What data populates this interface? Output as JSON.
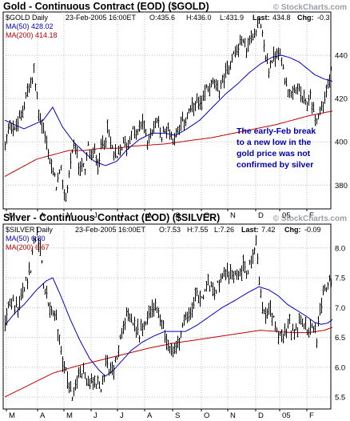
{
  "chart_data": [
    {
      "type": "ohlc",
      "title": "Gold - Continuous Contract (EOD) ($GOLD)",
      "watermark": "© StockCharts.com",
      "info_line": {
        "symbol_label": "$GOLD Daily",
        "date": "23-Feb-2005 16:00ET",
        "open": "O:435.6",
        "high": "H:436.0",
        "low": "L:431.9",
        "last_label": "Last:",
        "last": "434.8",
        "chg_label": "Chg:",
        "chg": "-0.3"
      },
      "legend": {
        "ma50": "MA(50) 428.02",
        "ma200": "MA(200) 414.18"
      },
      "colors": {
        "price": "#000000",
        "ma50": "#0000c8",
        "ma200": "#c00000",
        "chg": "#c00000",
        "grid": "#b8bcc4",
        "annotation": "#0000aa"
      },
      "ylim": [
        369,
        460
      ],
      "y_ticks": [
        "380",
        "400",
        "420",
        "440"
      ],
      "x_labels": [
        "M",
        "A",
        "M",
        "J",
        "J",
        "A",
        "S",
        "O",
        "N",
        "D",
        "05",
        "F"
      ],
      "grid": true,
      "annotation": [
        "The early-Feb break",
        "to a new low in the",
        "gold price was not",
        "confirmed by silver"
      ],
      "price_anchors": [
        [
          0,
          398
        ],
        [
          6,
          410
        ],
        [
          12,
          405
        ],
        [
          20,
          412
        ],
        [
          26,
          422
        ],
        [
          32,
          426
        ],
        [
          36,
          432
        ],
        [
          42,
          414
        ],
        [
          50,
          402
        ],
        [
          58,
          388
        ],
        [
          64,
          380
        ],
        [
          70,
          386
        ],
        [
          74,
          375
        ],
        [
          78,
          378
        ],
        [
          82,
          392
        ],
        [
          88,
          397
        ],
        [
          92,
          388
        ],
        [
          96,
          390
        ],
        [
          100,
          385
        ],
        [
          104,
          398
        ],
        [
          108,
          392
        ],
        [
          112,
          396
        ],
        [
          116,
          390
        ],
        [
          122,
          400
        ],
        [
          128,
          405
        ],
        [
          134,
          397
        ],
        [
          140,
          392
        ],
        [
          148,
          400
        ],
        [
          152,
          398
        ],
        [
          160,
          405
        ],
        [
          166,
          403
        ],
        [
          172,
          410
        ],
        [
          178,
          400
        ],
        [
          184,
          405
        ],
        [
          190,
          410
        ],
        [
          196,
          402
        ],
        [
          202,
          407
        ],
        [
          210,
          402
        ],
        [
          216,
          405
        ],
        [
          224,
          410
        ],
        [
          232,
          414
        ],
        [
          240,
          418
        ],
        [
          246,
          416
        ],
        [
          252,
          425
        ],
        [
          260,
          427
        ],
        [
          266,
          423
        ],
        [
          272,
          428
        ],
        [
          278,
          433
        ],
        [
          284,
          440
        ],
        [
          290,
          442
        ],
        [
          296,
          447
        ],
        [
          302,
          443
        ],
        [
          308,
          448
        ],
        [
          314,
          453
        ],
        [
          318,
          455
        ],
        [
          322,
          448
        ],
        [
          326,
          440
        ],
        [
          330,
          433
        ],
        [
          334,
          438
        ],
        [
          338,
          440
        ],
        [
          342,
          443
        ],
        [
          346,
          437
        ],
        [
          350,
          430
        ],
        [
          356,
          422
        ],
        [
          360,
          420
        ],
        [
          366,
          426
        ],
        [
          372,
          419
        ],
        [
          378,
          417
        ],
        [
          382,
          421
        ],
        [
          386,
          414
        ],
        [
          390,
          410
        ],
        [
          394,
          414
        ],
        [
          398,
          418
        ],
        [
          402,
          423
        ],
        [
          406,
          428
        ],
        [
          410,
          435
        ]
      ],
      "ma50_anchors": [
        [
          0,
          410
        ],
        [
          24,
          406
        ],
        [
          48,
          410
        ],
        [
          60,
          416
        ],
        [
          72,
          407
        ],
        [
          86,
          400
        ],
        [
          100,
          395
        ],
        [
          112,
          391
        ],
        [
          126,
          389
        ],
        [
          140,
          391
        ],
        [
          152,
          396
        ],
        [
          168,
          401
        ],
        [
          184,
          404
        ],
        [
          200,
          404
        ],
        [
          214,
          403
        ],
        [
          228,
          406
        ],
        [
          244,
          410
        ],
        [
          260,
          416
        ],
        [
          276,
          422
        ],
        [
          292,
          427
        ],
        [
          306,
          432
        ],
        [
          320,
          436
        ],
        [
          334,
          439
        ],
        [
          346,
          440
        ],
        [
          356,
          439
        ],
        [
          368,
          437
        ],
        [
          378,
          434
        ],
        [
          388,
          431
        ],
        [
          400,
          429
        ],
        [
          410,
          428
        ]
      ],
      "ma200_anchors": [
        [
          0,
          384
        ],
        [
          20,
          388
        ],
        [
          40,
          392
        ],
        [
          60,
          394
        ],
        [
          80,
          396
        ],
        [
          100,
          396
        ],
        [
          120,
          397
        ],
        [
          140,
          397
        ],
        [
          160,
          398
        ],
        [
          180,
          398.5
        ],
        [
          200,
          399
        ],
        [
          220,
          400
        ],
        [
          240,
          401
        ],
        [
          260,
          402
        ],
        [
          280,
          403.5
        ],
        [
          300,
          405
        ],
        [
          320,
          406.5
        ],
        [
          340,
          408
        ],
        [
          360,
          410
        ],
        [
          380,
          412
        ],
        [
          400,
          413.5
        ],
        [
          410,
          414.2
        ]
      ]
    },
    {
      "type": "ohlc",
      "title": "Silver - Continuous Contract (EOD) ($SILVER)",
      "watermark": "© StockCharts.com",
      "info_line": {
        "symbol_label": "$SILVER Daily",
        "date": "23-Feb-2005 16:00ET",
        "open": "O:7.53",
        "high": "H:7.55",
        "low": "L:7.26",
        "last_label": "Last:",
        "last": "7.42",
        "chg_label": "Chg:",
        "chg": "-0.09"
      },
      "legend": {
        "ma50": "MA(50) 6.80",
        "ma200": "MA(200) 6.67"
      },
      "colors": {
        "price": "#000000",
        "ma50": "#0000c8",
        "ma200": "#c00000",
        "chg": "#c00000",
        "grid": "#b8bcc4"
      },
      "ylim": [
        5.3,
        8.4
      ],
      "y_ticks": [
        "5.5",
        "6.0",
        "6.5",
        "7.0",
        "7.5",
        "8.0"
      ],
      "x_labels": [
        "M",
        "A",
        "M",
        "J",
        "J",
        "A",
        "S",
        "O",
        "N",
        "D",
        "05",
        "F"
      ],
      "grid": true,
      "price_anchors": [
        [
          0,
          6.7
        ],
        [
          4,
          7.0
        ],
        [
          10,
          7.1
        ],
        [
          16,
          6.95
        ],
        [
          22,
          7.3
        ],
        [
          28,
          7.5
        ],
        [
          32,
          7.6
        ],
        [
          36,
          8.1
        ],
        [
          40,
          8.25
        ],
        [
          44,
          8.0
        ],
        [
          48,
          7.4
        ],
        [
          52,
          7.2
        ],
        [
          56,
          7.0
        ],
        [
          60,
          6.9
        ],
        [
          64,
          6.8
        ],
        [
          68,
          6.4
        ],
        [
          72,
          6.1
        ],
        [
          76,
          5.9
        ],
        [
          80,
          5.7
        ],
        [
          84,
          5.55
        ],
        [
          88,
          5.7
        ],
        [
          92,
          5.85
        ],
        [
          98,
          5.9
        ],
        [
          104,
          5.7
        ],
        [
          110,
          5.8
        ],
        [
          116,
          5.75
        ],
        [
          120,
          5.6
        ],
        [
          124,
          5.9
        ],
        [
          128,
          6.1
        ],
        [
          134,
          5.9
        ],
        [
          140,
          6.2
        ],
        [
          146,
          6.6
        ],
        [
          152,
          6.8
        ],
        [
          158,
          6.9
        ],
        [
          162,
          6.7
        ],
        [
          168,
          6.55
        ],
        [
          174,
          6.7
        ],
        [
          180,
          6.9
        ],
        [
          186,
          7.0
        ],
        [
          192,
          6.9
        ],
        [
          198,
          6.7
        ],
        [
          204,
          6.3
        ],
        [
          208,
          6.2
        ],
        [
          214,
          6.35
        ],
        [
          220,
          6.55
        ],
        [
          226,
          6.8
        ],
        [
          232,
          6.9
        ],
        [
          238,
          7.2
        ],
        [
          244,
          7.1
        ],
        [
          250,
          7.3
        ],
        [
          256,
          7.4
        ],
        [
          262,
          7.3
        ],
        [
          268,
          7.4
        ],
        [
          274,
          7.5
        ],
        [
          280,
          7.6
        ],
        [
          286,
          7.5
        ],
        [
          292,
          7.6
        ],
        [
          298,
          7.7
        ],
        [
          304,
          7.65
        ],
        [
          308,
          7.8
        ],
        [
          312,
          8.0
        ],
        [
          314,
          8.05
        ],
        [
          316,
          7.9
        ],
        [
          318,
          7.4
        ],
        [
          322,
          7.0
        ],
        [
          326,
          6.9
        ],
        [
          330,
          7.0
        ],
        [
          334,
          6.85
        ],
        [
          338,
          6.7
        ],
        [
          342,
          6.55
        ],
        [
          346,
          6.5
        ],
        [
          350,
          6.6
        ],
        [
          356,
          6.7
        ],
        [
          362,
          6.6
        ],
        [
          368,
          6.75
        ],
        [
          374,
          6.7
        ],
        [
          378,
          6.6
        ],
        [
          382,
          6.75
        ],
        [
          386,
          6.6
        ],
        [
          390,
          6.5
        ],
        [
          394,
          7.0
        ],
        [
          398,
          7.2
        ],
        [
          402,
          7.35
        ],
        [
          406,
          7.45
        ],
        [
          410,
          7.45
        ]
      ],
      "ma50_anchors": [
        [
          0,
          6.7
        ],
        [
          12,
          6.9
        ],
        [
          24,
          7.05
        ],
        [
          40,
          7.3
        ],
        [
          52,
          7.45
        ],
        [
          60,
          7.5
        ],
        [
          70,
          7.2
        ],
        [
          82,
          6.8
        ],
        [
          94,
          6.45
        ],
        [
          106,
          6.15
        ],
        [
          118,
          5.95
        ],
        [
          126,
          5.85
        ],
        [
          136,
          5.95
        ],
        [
          146,
          6.1
        ],
        [
          158,
          6.28
        ],
        [
          172,
          6.42
        ],
        [
          186,
          6.52
        ],
        [
          200,
          6.6
        ],
        [
          214,
          6.6
        ],
        [
          226,
          6.6
        ],
        [
          240,
          6.7
        ],
        [
          256,
          6.85
        ],
        [
          272,
          7.0
        ],
        [
          288,
          7.12
        ],
        [
          304,
          7.25
        ],
        [
          318,
          7.35
        ],
        [
          330,
          7.3
        ],
        [
          342,
          7.2
        ],
        [
          354,
          7.05
        ],
        [
          366,
          6.95
        ],
        [
          378,
          6.85
        ],
        [
          388,
          6.75
        ],
        [
          396,
          6.72
        ],
        [
          404,
          6.74
        ],
        [
          410,
          6.8
        ]
      ],
      "ma200_anchors": [
        [
          0,
          5.5
        ],
        [
          30,
          5.7
        ],
        [
          60,
          5.9
        ],
        [
          90,
          6.02
        ],
        [
          120,
          6.12
        ],
        [
          150,
          6.22
        ],
        [
          180,
          6.32
        ],
        [
          210,
          6.4
        ],
        [
          240,
          6.46
        ],
        [
          270,
          6.52
        ],
        [
          300,
          6.58
        ],
        [
          320,
          6.62
        ],
        [
          340,
          6.6
        ],
        [
          360,
          6.58
        ],
        [
          380,
          6.58
        ],
        [
          400,
          6.62
        ],
        [
          410,
          6.67
        ]
      ]
    }
  ]
}
